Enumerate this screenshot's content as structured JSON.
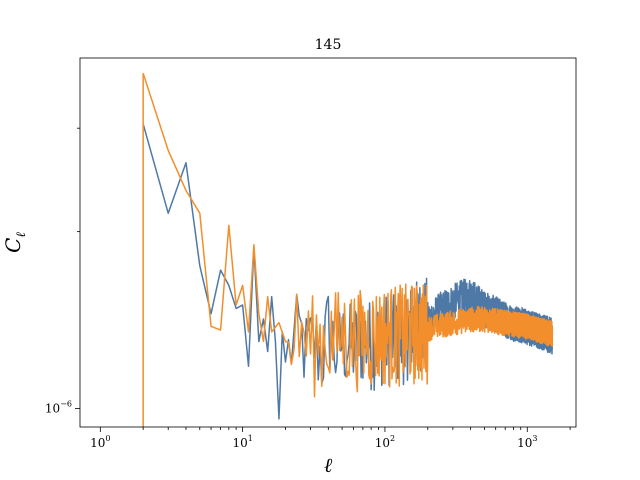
{
  "chart_data": {
    "type": "line",
    "title": "145",
    "xlabel": "ℓ",
    "ylabel": "C",
    "ylabel_subscript": "ℓ",
    "x_scale": "log",
    "y_scale": "log",
    "xlim": [
      0.72,
      2200
    ],
    "ylim": [
      9.3e-07,
      3.95e-06
    ],
    "x_ticks": [
      {
        "value": 1,
        "base": "10",
        "exp": "0"
      },
      {
        "value": 10,
        "base": "10",
        "exp": "1"
      },
      {
        "value": 100,
        "base": "10",
        "exp": "2"
      },
      {
        "value": 1000,
        "base": "10",
        "exp": "3"
      }
    ],
    "y_ticks": [
      {
        "value": 1e-06,
        "base": "10",
        "exp": "−6"
      }
    ],
    "grid": false,
    "legend": "none",
    "series": [
      {
        "color": "#4e79a7",
        "points": [
          [
            2,
            3.05e-06
          ],
          [
            3,
            2.15e-06
          ],
          [
            4,
            2.62e-06
          ],
          [
            5,
            1.75e-06
          ],
          [
            6,
            1.45e-06
          ],
          [
            7,
            1.72e-06
          ],
          [
            8,
            1.62e-06
          ],
          [
            9,
            1.48e-06
          ],
          [
            10,
            1.5e-06
          ],
          [
            11,
            1.18e-06
          ],
          [
            12,
            1.88e-06
          ],
          [
            13,
            1.3e-06
          ],
          [
            14,
            1.42e-06
          ],
          [
            15,
            1.25e-06
          ],
          [
            16,
            1.55e-06
          ],
          [
            17,
            1.3e-06
          ],
          [
            18,
            9.6e-07
          ],
          [
            19,
            1.35e-06
          ],
          [
            20,
            1.2e-06
          ],
          [
            22,
            1.28e-06
          ],
          [
            25,
            1.35e-06
          ],
          [
            28,
            1.25e-06
          ],
          [
            32,
            1.3e-06
          ],
          [
            36,
            1.22e-06
          ],
          [
            40,
            1.38e-06
          ],
          [
            45,
            1.25e-06
          ],
          [
            50,
            1.3e-06
          ],
          [
            60,
            1.28e-06
          ],
          [
            70,
            1.32e-06
          ],
          [
            80,
            1.3e-06
          ],
          [
            100,
            1.33e-06
          ],
          [
            130,
            1.32e-06
          ],
          [
            160,
            1.4e-06
          ],
          [
            200,
            1.42e-06
          ],
          [
            250,
            1.48e-06
          ],
          [
            300,
            1.52e-06
          ],
          [
            350,
            1.55e-06
          ],
          [
            400,
            1.56e-06
          ],
          [
            450,
            1.52e-06
          ],
          [
            500,
            1.48e-06
          ],
          [
            600,
            1.45e-06
          ],
          [
            700,
            1.42e-06
          ],
          [
            800,
            1.4e-06
          ],
          [
            1000,
            1.38e-06
          ],
          [
            1200,
            1.36e-06
          ],
          [
            1500,
            1.33e-06
          ]
        ],
        "noise_low_l": 0.18,
        "noise_high_l": 0.07
      },
      {
        "color": "#f28e2b",
        "points": [
          [
            2,
            3.72e-06
          ],
          [
            3,
            2.75e-06
          ],
          [
            4,
            2.35e-06
          ],
          [
            5,
            2.15e-06
          ],
          [
            6,
            1.38e-06
          ],
          [
            7,
            1.36e-06
          ],
          [
            8,
            2.05e-06
          ],
          [
            9,
            1.5e-06
          ],
          [
            10,
            1.62e-06
          ],
          [
            11,
            1.35e-06
          ],
          [
            12,
            1.9e-06
          ],
          [
            13,
            1.45e-06
          ],
          [
            14,
            1.3e-06
          ],
          [
            15,
            1.55e-06
          ],
          [
            16,
            1.35e-06
          ],
          [
            18,
            1.4e-06
          ],
          [
            20,
            1.3e-06
          ],
          [
            25,
            1.35e-06
          ],
          [
            30,
            1.3e-06
          ],
          [
            40,
            1.32e-06
          ],
          [
            50,
            1.34e-06
          ],
          [
            70,
            1.33e-06
          ],
          [
            100,
            1.35e-06
          ],
          [
            150,
            1.36e-06
          ],
          [
            200,
            1.37e-06
          ],
          [
            300,
            1.4e-06
          ],
          [
            400,
            1.42e-06
          ],
          [
            500,
            1.42e-06
          ],
          [
            700,
            1.4e-06
          ],
          [
            1000,
            1.38e-06
          ],
          [
            1500,
            1.34e-06
          ]
        ],
        "noise_low_l": 0.2,
        "noise_high_l": 0.05
      }
    ]
  }
}
